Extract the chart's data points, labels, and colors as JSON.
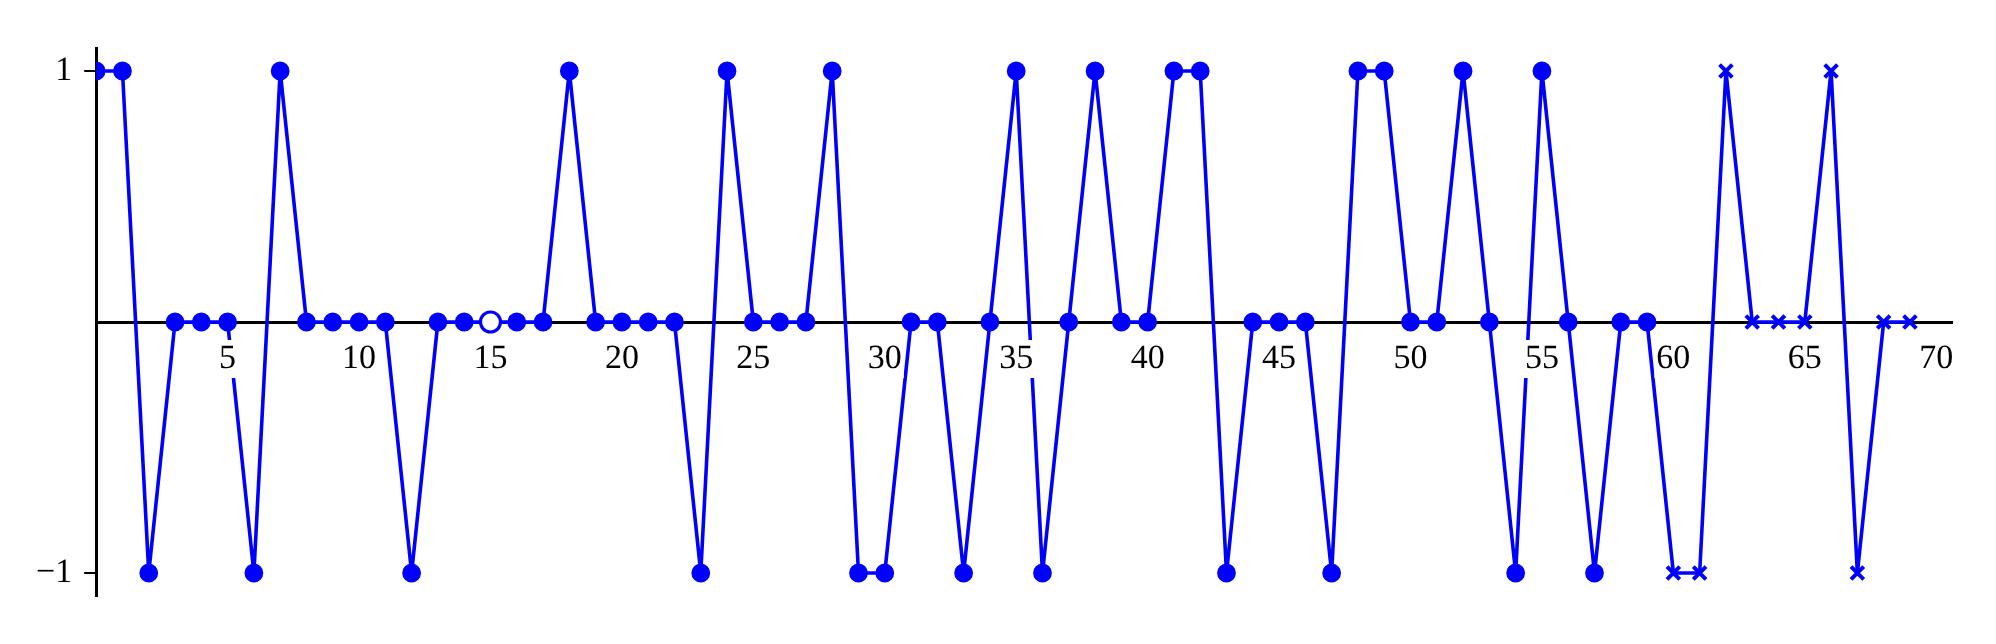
{
  "chart_data": {
    "type": "line",
    "xlim": [
      0,
      70.6
    ],
    "ylim": [
      -1.09,
      1.09
    ],
    "xticks": [
      5,
      10,
      15,
      20,
      25,
      30,
      35,
      40,
      45,
      50,
      55,
      60,
      65,
      70
    ],
    "yticks": [
      -1,
      1
    ],
    "grid": false,
    "legend": false,
    "line_style": "solid",
    "series": [
      {
        "type": "line",
        "marker": "circle",
        "color": "#0000ff",
        "x": [
          0,
          1,
          2,
          3,
          4,
          5,
          6,
          7,
          8,
          9,
          10,
          11,
          12,
          13,
          14,
          15,
          16,
          17,
          18,
          19,
          20,
          21,
          22,
          23,
          24,
          25,
          26,
          27,
          28,
          29,
          30,
          31,
          32,
          33,
          34,
          35,
          36,
          37,
          38,
          39,
          40,
          41,
          42,
          43,
          44,
          45,
          46,
          47,
          48,
          49,
          50,
          51,
          52,
          53,
          54,
          55,
          56,
          57,
          58,
          59
        ],
        "values": [
          1,
          1,
          -1,
          0,
          0,
          0,
          -1,
          1,
          0,
          0,
          0,
          0,
          -1,
          0,
          0,
          0,
          0,
          0,
          1,
          0,
          0,
          0,
          0,
          -1,
          1,
          0,
          0,
          0,
          1,
          -1,
          -1,
          0,
          0,
          -1,
          0,
          1,
          -1,
          0,
          1,
          0,
          0,
          1,
          1,
          -1,
          0,
          0,
          0,
          -1,
          1,
          1,
          0,
          0,
          1,
          0,
          -1,
          1,
          0,
          -1,
          0,
          0
        ]
      },
      {
        "type": "line",
        "marker": "cross",
        "color": "#0000ff",
        "x": [
          59,
          60,
          61,
          62,
          63,
          64,
          65,
          66,
          67,
          68,
          69
        ],
        "values": [
          0,
          -1,
          -1,
          1,
          0,
          0,
          0,
          1,
          -1,
          0,
          0
        ]
      },
      {
        "type": "scatter",
        "marker": "circle",
        "color": "#0000ff",
        "x": [
          15
        ],
        "values": [
          0
        ]
      }
    ]
  }
}
